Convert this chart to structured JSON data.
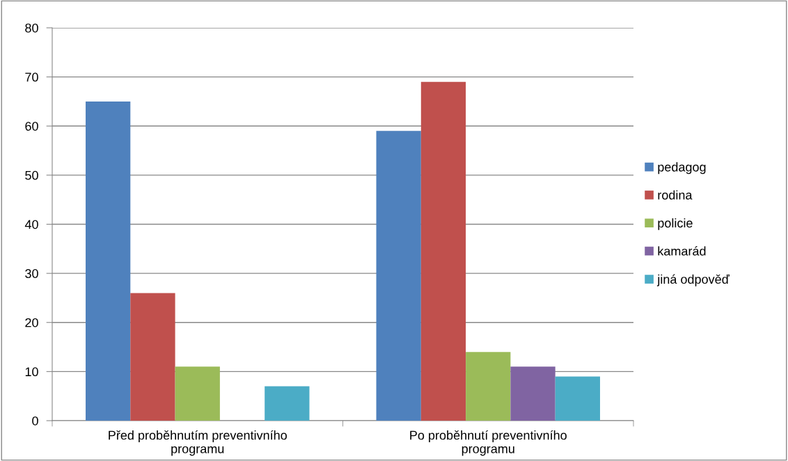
{
  "chart_data": {
    "type": "bar",
    "categories": [
      "Před proběhnutím preventivního programu",
      "Po proběhnutí preventivního programu"
    ],
    "series": [
      {
        "name": "pedagog",
        "color": "#4f81bd",
        "values": [
          65,
          59
        ]
      },
      {
        "name": "rodina",
        "color": "#c0504d",
        "values": [
          26,
          69
        ]
      },
      {
        "name": "policie",
        "color": "#9bbb59",
        "values": [
          11,
          14
        ]
      },
      {
        "name": "kamarád",
        "color": "#8064a2",
        "values": [
          0,
          11
        ]
      },
      {
        "name": "jiná odpověď",
        "color": "#4bacc6",
        "values": [
          7,
          9
        ]
      }
    ],
    "ylim": [
      0,
      80
    ],
    "yticks": [
      0,
      10,
      20,
      30,
      40,
      50,
      60,
      70,
      80
    ],
    "grid": "y",
    "legend": "right"
  }
}
